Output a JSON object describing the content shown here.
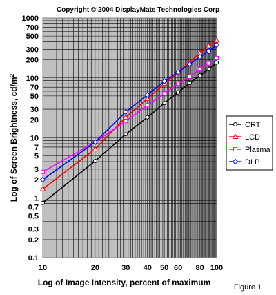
{
  "copyright": "Copyright © 2004 DisplayMate Technologies Corp",
  "figure_label": "Figure 1",
  "chart_data": {
    "type": "line",
    "title": "",
    "xlabel": "Log of Image Intensity, percent of maximum",
    "ylabel": "Log of Screen Brightness, cd/m",
    "ylabel_superscript": "2",
    "xscale": "log",
    "yscale": "log",
    "xlim": [
      10,
      100
    ],
    "ylim": [
      0.1,
      1000
    ],
    "x_ticks": [
      10,
      20,
      30,
      40,
      50,
      60,
      80,
      100
    ],
    "x_tick_labels": [
      "10",
      "20",
      "30",
      "40",
      "50",
      "60",
      "80",
      "100"
    ],
    "y_ticks": [
      0.1,
      0.2,
      0.3,
      0.5,
      0.7,
      1,
      2,
      3,
      5,
      7,
      10,
      20,
      30,
      50,
      70,
      100,
      200,
      300,
      500,
      700,
      1000
    ],
    "y_tick_labels": [
      "0.1",
      "0.2",
      "0.3",
      "0.5",
      "0.7",
      "1",
      "2",
      "3",
      "5",
      "7",
      "10",
      "20",
      "30",
      "50",
      "70",
      "100",
      "200",
      "300",
      "500",
      "700",
      "1000"
    ],
    "grid": true,
    "legend_position": "right",
    "plot_background": "#c0c0c0",
    "series": [
      {
        "name": "CRT",
        "color": "#000000",
        "marker": "circle",
        "x": [
          10,
          20,
          30,
          40,
          50,
          60,
          70,
          80,
          90,
          100
        ],
        "y": [
          0.82,
          4.1,
          11.5,
          22,
          38,
          57,
          82,
          110,
          140,
          180
        ]
      },
      {
        "name": "LCD",
        "color": "#ff0000",
        "marker": "triangle",
        "x": [
          10,
          20,
          30,
          40,
          50,
          60,
          70,
          80,
          90,
          100
        ],
        "y": [
          1.4,
          6.5,
          22,
          45,
          80,
          125,
          185,
          260,
          340,
          420
        ]
      },
      {
        "name": "Plasma",
        "color": "#ff00ff",
        "marker": "square",
        "x": [
          10,
          20,
          30,
          40,
          50,
          60,
          70,
          80,
          90,
          100
        ],
        "y": [
          2.7,
          8.5,
          19,
          35,
          55,
          80,
          105,
          140,
          175,
          215
        ]
      },
      {
        "name": "DLP",
        "color": "#0000ff",
        "marker": "diamond",
        "x": [
          10,
          20,
          30,
          40,
          50,
          60,
          70,
          80,
          90,
          100
        ],
        "y": [
          2.0,
          8.5,
          27,
          52,
          88,
          125,
          170,
          225,
          280,
          355
        ]
      }
    ]
  }
}
